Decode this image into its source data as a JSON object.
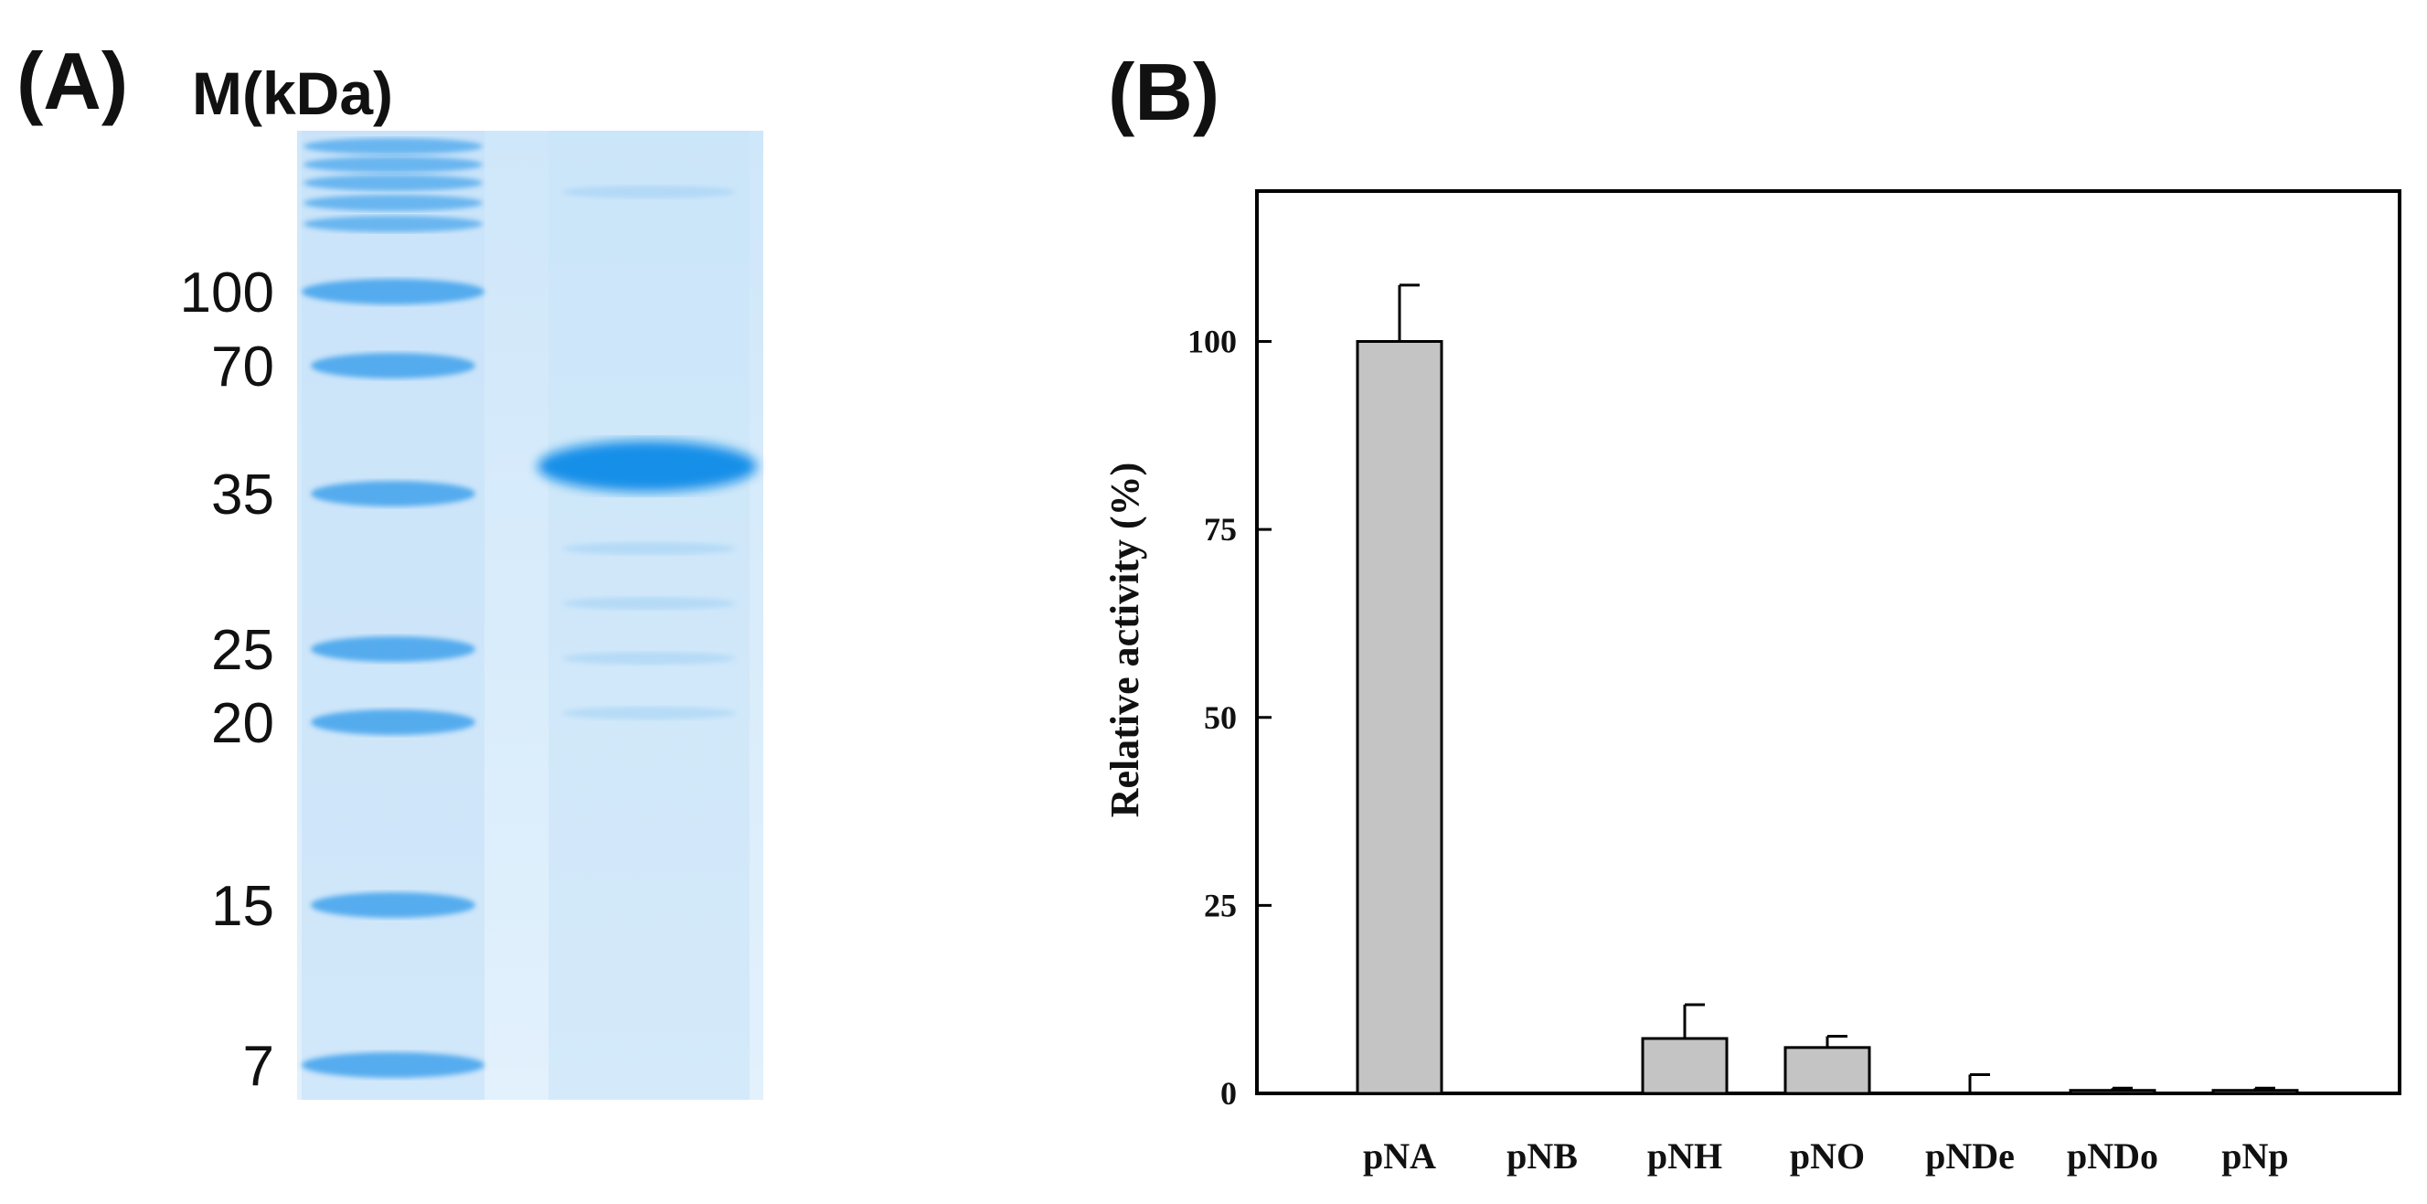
{
  "panel_a": {
    "label": "(A)",
    "marker_header": "M(kDa)",
    "gel_colors": {
      "background": "#d6ecfb",
      "band": "#3fa2ec",
      "strong_band": "#118be8"
    },
    "markers": [
      {
        "label": "100",
        "kda": 100
      },
      {
        "label": "70",
        "kda": 70
      },
      {
        "label": "35",
        "kda": 35
      },
      {
        "label": "25",
        "kda": 25
      },
      {
        "label": "20",
        "kda": 20
      },
      {
        "label": "15",
        "kda": 15
      },
      {
        "label": "7",
        "kda": 7
      }
    ]
  },
  "panel_b": {
    "label": "(B)"
  },
  "chart_data": {
    "type": "bar",
    "title": "",
    "xlabel": "",
    "ylabel": "Relative activity (%)",
    "categories": [
      "pNA",
      "pNB",
      "pNH",
      "pNO",
      "pNDe",
      "pNDo",
      "pNp"
    ],
    "values": [
      100,
      0,
      7.3,
      6.1,
      0,
      0.4,
      0.4
    ],
    "errors": [
      7.5,
      0,
      4.5,
      1.5,
      2.5,
      0.3,
      0.3
    ],
    "ylim": [
      0,
      120
    ],
    "yticks": [
      0,
      25,
      50,
      75,
      100
    ],
    "bar_color": "#c4c4c4",
    "grid": false,
    "legend": "none"
  }
}
